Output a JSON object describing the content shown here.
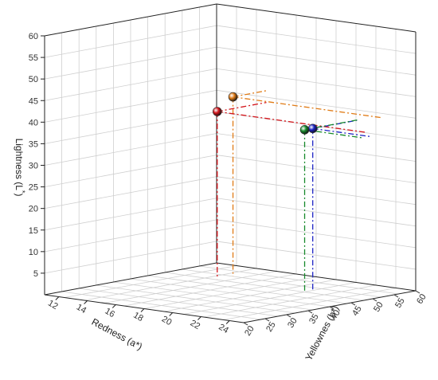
{
  "chart_data": {
    "type": "scatter3d",
    "title": "",
    "axes": {
      "z": {
        "label_main": "Lightness (L",
        "label_sup": "*",
        "label_close": ")",
        "ticks": [
          "5",
          "10",
          "15",
          "20",
          "25",
          "30",
          "35",
          "40",
          "45",
          "50",
          "55",
          "60"
        ],
        "range": [
          0,
          60
        ]
      },
      "x": {
        "label": "Redness (a*)",
        "ticks": [
          "12",
          "14",
          "16",
          "18",
          "20",
          "22",
          "24"
        ],
        "range": [
          11,
          25
        ]
      },
      "y": {
        "label": "Yellownes (b*)",
        "ticks": [
          "20",
          "25",
          "30",
          "35",
          "40",
          "45",
          "50",
          "55",
          "60"
        ],
        "range": [
          20,
          60
        ]
      }
    },
    "grid": true,
    "series": [
      {
        "color": "#e07b16",
        "values": [
          {
            "a": 13.8,
            "b": 30.2,
            "L": 41.6
          }
        ]
      },
      {
        "color": "#d4161c",
        "values": [
          {
            "a": 15.0,
            "b": 30.0,
            "L": 38.8
          }
        ]
      },
      {
        "color": "#1b22c4",
        "values": [
          {
            "a": 14.6,
            "b": 48.2,
            "L": 37.6
          }
        ]
      },
      {
        "color": "#178a2b",
        "values": [
          {
            "a": 15.3,
            "b": 48.3,
            "L": 37.7
          }
        ]
      }
    ]
  }
}
